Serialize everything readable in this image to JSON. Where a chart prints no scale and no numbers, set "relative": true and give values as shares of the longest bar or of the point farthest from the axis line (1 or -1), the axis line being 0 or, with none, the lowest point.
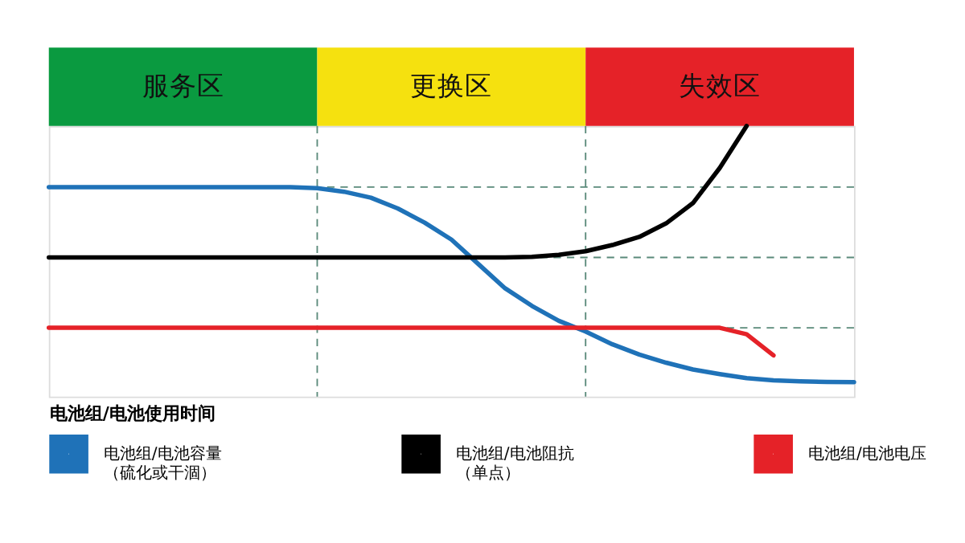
{
  "chart_data": {
    "type": "line",
    "relative": true,
    "xlabel": "电池组/电池使用时间",
    "categories": [
      null,
      null,
      null,
      null,
      null,
      null,
      null,
      null,
      null,
      null,
      null,
      null,
      null,
      null,
      null,
      null,
      null,
      null,
      null,
      null,
      null,
      null,
      null,
      null,
      null,
      null,
      null,
      null,
      null,
      null,
      null
    ],
    "legend": "bottom",
    "line_style": "solid",
    "series": [
      {
        "name": "电池组/电池容量（硫化或干涸）",
        "color": "#1f72b8",
        "values": [
          0.774,
          0.774,
          0.774,
          0.774,
          0.774,
          0.774,
          0.774,
          0.774,
          0.774,
          0.774,
          0.77,
          0.757,
          0.735,
          0.695,
          0.643,
          0.58,
          0.49,
          0.4,
          0.335,
          0.28,
          0.24,
          0.193,
          0.155,
          0.125,
          0.1,
          0.083,
          0.068,
          0.06,
          0.056,
          0.054,
          0.053
        ]
      },
      {
        "name": "电池组/电池阻抗（单点）",
        "color": "#000000",
        "values": [
          0.514,
          0.514,
          0.514,
          0.514,
          0.514,
          0.514,
          0.514,
          0.514,
          0.514,
          0.514,
          0.514,
          0.514,
          0.514,
          0.514,
          0.514,
          0.514,
          0.514,
          0.514,
          0.516,
          0.524,
          0.537,
          0.56,
          0.59,
          0.64,
          0.715,
          0.845,
          1.0,
          null,
          null,
          null,
          null
        ]
      },
      {
        "name": "电池组/电池电压",
        "color": "#e52228",
        "values": [
          0.254,
          0.254,
          0.254,
          0.254,
          0.254,
          0.254,
          0.254,
          0.254,
          0.254,
          0.254,
          0.254,
          0.254,
          0.254,
          0.254,
          0.254,
          0.254,
          0.254,
          0.254,
          0.254,
          0.254,
          0.254,
          0.254,
          0.254,
          0.254,
          0.254,
          0.254,
          0.23,
          0.152,
          null,
          null,
          null
        ]
      }
    ],
    "ref_lines": [
      {
        "axis": "y",
        "value": 0.774,
        "color": "#5a8a7a",
        "line_style": "dashed"
      },
      {
        "axis": "y",
        "value": 0.514,
        "color": "#5a8a7a",
        "line_style": "dashed"
      },
      {
        "axis": "y",
        "value": 0.254,
        "color": "#5a8a7a",
        "line_style": "dashed"
      }
    ],
    "annotations": [
      "服务区",
      "更换区",
      "失效区"
    ]
  }
}
